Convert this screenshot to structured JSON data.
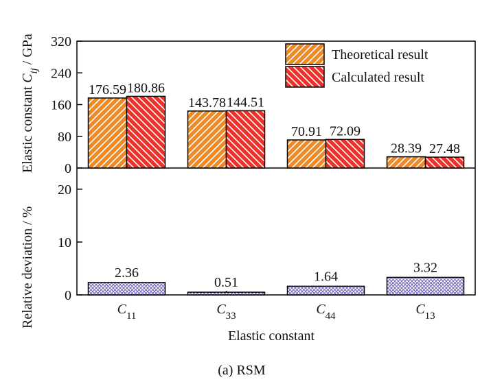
{
  "chart_data": [
    {
      "type": "bar",
      "panel": "top",
      "categories": [
        "C11",
        "C33",
        "C44",
        "C13"
      ],
      "category_labels": [
        {
          "base": "C",
          "sub": "11"
        },
        {
          "base": "C",
          "sub": "33"
        },
        {
          "base": "C",
          "sub": "44"
        },
        {
          "base": "C",
          "sub": "13"
        }
      ],
      "series": [
        {
          "name": "Theoretical result",
          "values": [
            176.59,
            143.78,
            70.91,
            28.39
          ],
          "color": "#f08a24",
          "pattern": "hatch-forward"
        },
        {
          "name": "Calculated result",
          "values": [
            180.86,
            144.51,
            72.09,
            27.48
          ],
          "color": "#e8342c",
          "pattern": "hatch-backward"
        }
      ],
      "value_labels": [
        [
          "176.59",
          "143.78",
          "70.91",
          "28.39"
        ],
        [
          "180.86",
          "144.51",
          "72.09",
          "27.48"
        ]
      ],
      "ylabel": {
        "base": "Elastic constant ",
        "var": "C",
        "sub": "ij",
        "unit": " / GPa"
      },
      "ylim": [
        0,
        320
      ],
      "yticks": [
        0,
        80,
        160,
        240,
        320
      ],
      "legend_position": "top-right",
      "grid": false
    },
    {
      "type": "bar",
      "panel": "bottom",
      "categories": [
        "C11",
        "C33",
        "C44",
        "C13"
      ],
      "series": [
        {
          "name": "",
          "values": [
            2.36,
            0.51,
            1.64,
            3.32
          ],
          "color": "#a6a0d8",
          "pattern": "crosshatch"
        }
      ],
      "value_labels": [
        "2.36",
        "0.51",
        "1.64",
        "3.32"
      ],
      "ylabel": "Relative deviation / %",
      "ylim": [
        0,
        24
      ],
      "yticks": [
        0,
        10,
        20
      ],
      "xlabel": "Elastic constant",
      "grid": false
    }
  ],
  "caption": "(a) RSM"
}
